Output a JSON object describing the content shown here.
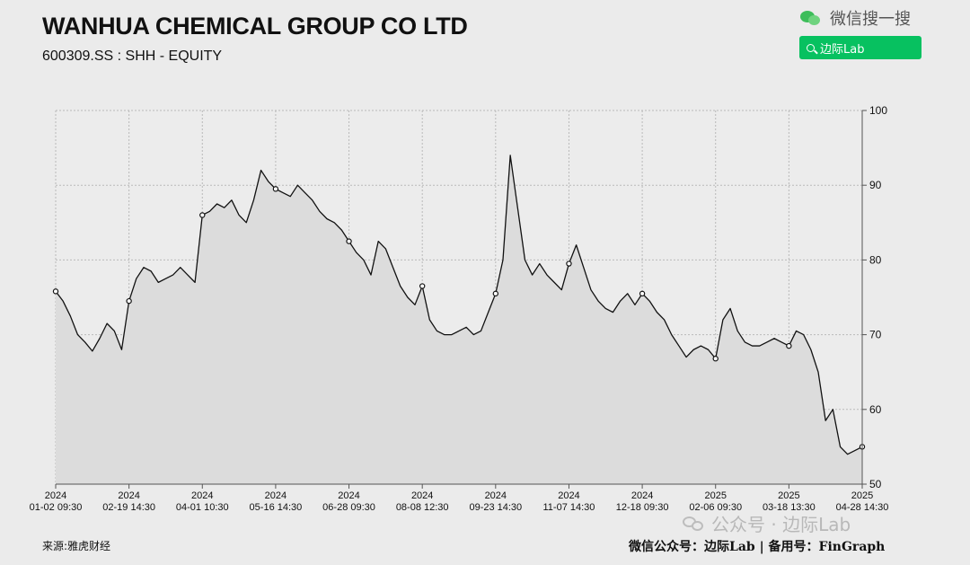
{
  "header": {
    "title": "WANHUA CHEMICAL GROUP CO LTD",
    "subtitle": "600309.SS : SHH - EQUITY"
  },
  "wechat": {
    "search_text": "微信搜一搜",
    "button_label": "边际Lab",
    "icon": "wechat-icon",
    "accent": "#07c160"
  },
  "footer": {
    "source": "来源:雅虎财经",
    "credit": "微信公众号：边际Lab  |  备用号：FinGraph"
  },
  "watermark": {
    "text": "公众号 · 边际Lab"
  },
  "chart_data": {
    "type": "area",
    "title": "",
    "xlabel": "",
    "ylabel": "",
    "ylim": [
      50,
      100
    ],
    "yticks": [
      50,
      60,
      70,
      80,
      90,
      100
    ],
    "y_axis_side": "right",
    "grid": true,
    "line_color": "#111111",
    "fill_color": "#dcdcdc",
    "xticks": [
      {
        "idx": 0,
        "year": "2024",
        "label": "01-02 09:30"
      },
      {
        "idx": 10,
        "year": "2024",
        "label": "02-19 14:30"
      },
      {
        "idx": 20,
        "year": "2024",
        "label": "04-01 10:30"
      },
      {
        "idx": 30,
        "year": "2024",
        "label": "05-16 14:30"
      },
      {
        "idx": 40,
        "year": "2024",
        "label": "06-28 09:30"
      },
      {
        "idx": 50,
        "year": "2024",
        "label": "08-08 12:30"
      },
      {
        "idx": 60,
        "year": "2024",
        "label": "09-23 14:30"
      },
      {
        "idx": 70,
        "year": "2024",
        "label": "11-07 14:30"
      },
      {
        "idx": 80,
        "year": "2024",
        "label": "12-18 09:30"
      },
      {
        "idx": 90,
        "year": "2025",
        "label": "02-06 09:30"
      },
      {
        "idx": 100,
        "year": "2025",
        "label": "03-18 13:30"
      },
      {
        "idx": 110,
        "year": "2025",
        "label": "04-28 14:30"
      }
    ],
    "marked_indices": [
      0,
      10,
      20,
      30,
      40,
      50,
      60,
      70,
      80,
      90,
      100,
      110
    ],
    "values": [
      75.8,
      74.5,
      72.5,
      70.0,
      69.0,
      67.8,
      69.5,
      71.5,
      70.5,
      68.0,
      74.5,
      77.5,
      79.0,
      78.5,
      77.0,
      77.5,
      78.0,
      79.0,
      78.0,
      77.0,
      86.0,
      86.5,
      87.5,
      87.0,
      88.0,
      86.0,
      85.0,
      88.0,
      92.0,
      90.5,
      89.5,
      89.0,
      88.5,
      90.0,
      89.0,
      88.0,
      86.5,
      85.5,
      85.0,
      84.0,
      82.5,
      81.0,
      80.0,
      78.0,
      82.5,
      81.5,
      79.0,
      76.5,
      75.0,
      74.0,
      76.5,
      72.0,
      70.5,
      70.0,
      70.0,
      70.5,
      71.0,
      70.0,
      70.5,
      73.0,
      75.5,
      80.0,
      94.0,
      87.0,
      80.0,
      78.0,
      79.5,
      78.0,
      77.0,
      76.0,
      79.5,
      82.0,
      79.0,
      76.0,
      74.5,
      73.5,
      73.0,
      74.5,
      75.5,
      74.0,
      75.5,
      74.5,
      73.0,
      72.0,
      70.0,
      68.5,
      67.0,
      68.0,
      68.5,
      68.0,
      66.8,
      72.0,
      73.5,
      70.5,
      69.0,
      68.5,
      68.5,
      69.0,
      69.5,
      69.0,
      68.5,
      70.5,
      70.0,
      68.0,
      65.0,
      58.5,
      60.0,
      55.0,
      54.0,
      54.5,
      55.0
    ]
  }
}
